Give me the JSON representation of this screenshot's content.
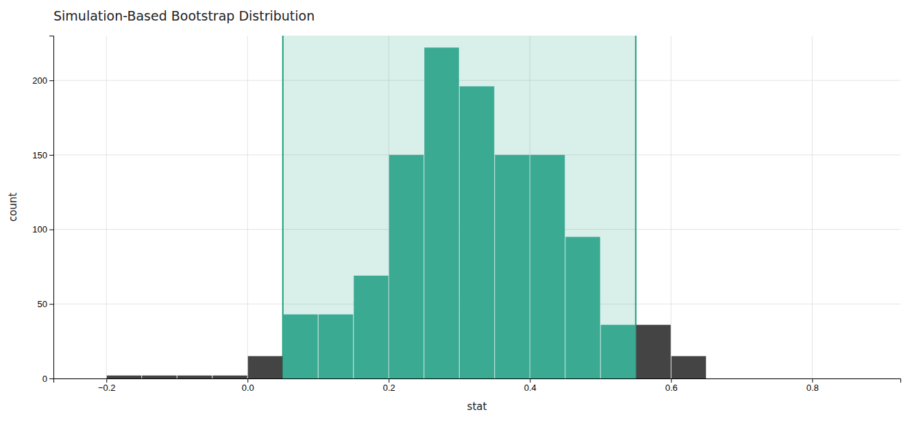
{
  "chart_data": {
    "type": "histogram",
    "title": "Simulation-Based Bootstrap Distribution",
    "xlabel": "stat",
    "ylabel": "count",
    "bins": [
      -0.2,
      -0.15,
      -0.1,
      -0.05,
      0.0,
      0.05,
      0.1,
      0.15,
      0.2,
      0.25,
      0.3,
      0.35,
      0.4,
      0.45,
      0.5,
      0.55,
      0.6,
      0.65
    ],
    "values": [
      2,
      2,
      2,
      2,
      15,
      43,
      43,
      69,
      150,
      222,
      196,
      150,
      150,
      95,
      36,
      36,
      15
    ],
    "colors": [
      "#444444",
      "#444444",
      "#444444",
      "#444444",
      "#444444",
      "#3BAA93",
      "#3BAA93",
      "#3BAA93",
      "#3BAA93",
      "#3BAA93",
      "#3BAA93",
      "#3BAA93",
      "#3BAA93",
      "#3BAA93",
      "#3BAA93",
      "#444444",
      "#444444"
    ],
    "ci_low": 0.05,
    "ci_high": 0.55,
    "xlim": [
      -0.275,
      0.925
    ],
    "ylim": [
      0,
      230
    ],
    "xticks": [
      {
        "value": -0.2,
        "label": "−0.2"
      },
      {
        "value": 0.0,
        "label": "0.0"
      },
      {
        "value": 0.2,
        "label": "0.2"
      },
      {
        "value": 0.4,
        "label": "0.4"
      },
      {
        "value": 0.6,
        "label": "0.6"
      },
      {
        "value": 0.8,
        "label": "0.8"
      }
    ],
    "yticks": [
      0,
      50,
      100,
      150,
      200
    ],
    "grid": true
  }
}
